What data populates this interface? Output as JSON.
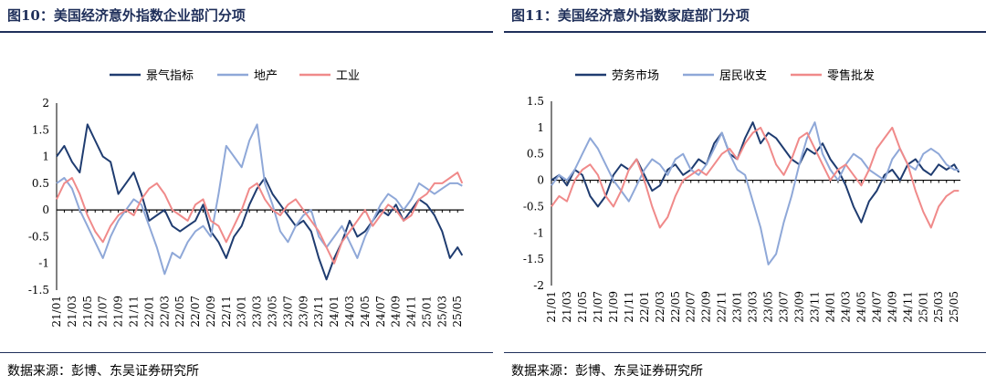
{
  "left": {
    "title": "图10：美国经济意外指数企业部门分项",
    "source": "数据来源：彭博、东吴证券研究所",
    "chart_data": {
      "type": "line",
      "ylim": [
        -1.5,
        2
      ],
      "yticks": [
        "2",
        "1.5",
        "1",
        "0.5",
        "0",
        "-0.5",
        "-1",
        "-1.5"
      ],
      "xticks": [
        "21/01",
        "21/03",
        "21/05",
        "21/07",
        "21/09",
        "21/11",
        "22/01",
        "22/03",
        "22/05",
        "22/07",
        "22/09",
        "22/11",
        "23/01",
        "23/03",
        "23/05",
        "23/07",
        "23/09",
        "23/11",
        "24/01",
        "24/03",
        "24/05",
        "24/07",
        "24/09",
        "24/11",
        "25/01",
        "25/03",
        "25/05"
      ],
      "legend_position": "top-center",
      "series": [
        {
          "name": "景气指标",
          "color": "#1f3c70",
          "x": [
            0,
            0.5,
            1,
            1.5,
            2,
            2.5,
            3,
            3.5,
            4,
            4.5,
            5,
            5.5,
            6,
            6.5,
            7,
            7.5,
            8,
            8.5,
            9,
            9.5,
            10,
            10.5,
            11,
            11.5,
            12,
            12.5,
            13,
            13.5,
            14,
            14.5,
            15,
            15.5,
            16,
            16.5,
            17,
            17.5,
            18,
            18.5,
            19,
            19.5,
            20,
            20.5,
            21,
            21.5,
            22,
            22.5,
            23,
            23.5,
            24,
            24.5,
            25,
            25.5,
            26,
            26.3
          ],
          "values": [
            1.0,
            1.2,
            0.9,
            0.7,
            1.6,
            1.3,
            1.0,
            0.9,
            0.3,
            0.5,
            0.7,
            0.3,
            -0.2,
            -0.1,
            0.0,
            -0.3,
            -0.4,
            -0.3,
            -0.2,
            0.1,
            -0.4,
            -0.6,
            -0.9,
            -0.5,
            -0.3,
            0.1,
            0.4,
            0.6,
            0.3,
            0.1,
            -0.1,
            -0.3,
            -0.2,
            -0.4,
            -0.9,
            -1.3,
            -0.9,
            -0.6,
            -0.2,
            -0.5,
            -0.4,
            -0.2,
            0.0,
            -0.1,
            0.1,
            -0.2,
            0.0,
            0.2,
            0.1,
            -0.1,
            -0.4,
            -0.9,
            -0.7,
            -0.85
          ]
        },
        {
          "name": "地产",
          "color": "#8fa8d8",
          "x": [
            0,
            0.5,
            1,
            1.5,
            2,
            2.5,
            3,
            3.5,
            4,
            4.5,
            5,
            5.5,
            6,
            6.5,
            7,
            7.5,
            8,
            8.5,
            9,
            9.5,
            10,
            10.5,
            11,
            11.5,
            12,
            12.5,
            13,
            13.5,
            14,
            14.5,
            15,
            15.5,
            16,
            16.5,
            17,
            17.5,
            18,
            18.5,
            19,
            19.5,
            20,
            20.5,
            21,
            21.5,
            22,
            22.5,
            23,
            23.5,
            24,
            24.5,
            25,
            25.5,
            26,
            26.3
          ],
          "values": [
            0.5,
            0.6,
            0.4,
            0.0,
            -0.3,
            -0.6,
            -0.9,
            -0.5,
            -0.2,
            0.0,
            0.2,
            0.1,
            -0.3,
            -0.7,
            -1.2,
            -0.8,
            -0.9,
            -0.6,
            -0.4,
            -0.3,
            -0.5,
            0.3,
            1.2,
            1.0,
            0.8,
            1.3,
            1.6,
            0.5,
            0.1,
            -0.4,
            -0.6,
            -0.3,
            -0.1,
            0.0,
            -0.5,
            -0.7,
            -0.5,
            -0.3,
            -0.6,
            -0.9,
            -0.5,
            -0.2,
            0.1,
            0.3,
            0.2,
            0.0,
            0.2,
            0.5,
            0.4,
            0.3,
            0.4,
            0.5,
            0.5,
            0.45
          ]
        },
        {
          "name": "工业",
          "color": "#f08a8a",
          "x": [
            0,
            0.5,
            1,
            1.5,
            2,
            2.5,
            3,
            3.5,
            4,
            4.5,
            5,
            5.5,
            6,
            6.5,
            7,
            7.5,
            8,
            8.5,
            9,
            9.5,
            10,
            10.5,
            11,
            11.5,
            12,
            12.5,
            13,
            13.5,
            14,
            14.5,
            15,
            15.5,
            16,
            16.5,
            17,
            17.5,
            18,
            18.5,
            19,
            19.5,
            20,
            20.5,
            21,
            21.5,
            22,
            22.5,
            23,
            23.5,
            24,
            24.5,
            25,
            25.5,
            26,
            26.3
          ],
          "values": [
            0.2,
            0.5,
            0.6,
            0.3,
            -0.1,
            -0.4,
            -0.6,
            -0.3,
            -0.1,
            0.0,
            -0.1,
            0.2,
            0.4,
            0.5,
            0.3,
            0.0,
            -0.1,
            -0.2,
            0.1,
            0.2,
            -0.2,
            -0.3,
            -0.6,
            -0.3,
            0.0,
            0.4,
            0.5,
            0.2,
            0.0,
            -0.1,
            0.1,
            0.2,
            0.0,
            -0.2,
            -0.4,
            -0.7,
            -1.0,
            -0.6,
            -0.4,
            -0.2,
            0.0,
            -0.3,
            -0.1,
            0.1,
            0.0,
            -0.2,
            -0.1,
            0.2,
            0.3,
            0.5,
            0.5,
            0.6,
            0.7,
            0.5
          ]
        }
      ]
    }
  },
  "right": {
    "title": "图11：美国经济意外指数家庭部门分项",
    "source": "数据来源：彭博、东吴证券研究所",
    "chart_data": {
      "type": "line",
      "ylim": [
        -2,
        1.5
      ],
      "yticks": [
        "1.5",
        "1",
        "0.5",
        "0",
        "-0.5",
        "-1",
        "-1.5",
        "-2"
      ],
      "xticks": [
        "21/01",
        "21/03",
        "21/05",
        "21/07",
        "21/09",
        "21/11",
        "22/01",
        "22/03",
        "22/05",
        "22/07",
        "22/09",
        "22/11",
        "23/01",
        "23/03",
        "23/05",
        "23/07",
        "23/09",
        "23/11",
        "24/01",
        "24/03",
        "24/05",
        "24/07",
        "24/09",
        "24/11",
        "25/01",
        "25/03",
        "25/05"
      ],
      "legend_position": "top-center",
      "series": [
        {
          "name": "劳务市场",
          "color": "#1f3c70",
          "x": [
            0,
            0.5,
            1,
            1.5,
            2,
            2.5,
            3,
            3.5,
            4,
            4.5,
            5,
            5.5,
            6,
            6.5,
            7,
            7.5,
            8,
            8.5,
            9,
            9.5,
            10,
            10.5,
            11,
            11.5,
            12,
            12.5,
            13,
            13.5,
            14,
            14.5,
            15,
            15.5,
            16,
            16.5,
            17,
            17.5,
            18,
            18.5,
            19,
            19.5,
            20,
            20.5,
            21,
            21.5,
            22,
            22.5,
            23,
            23.5,
            24,
            24.5,
            25,
            25.5,
            26,
            26.3
          ],
          "values": [
            0.0,
            0.1,
            -0.1,
            0.2,
            0.1,
            -0.3,
            -0.5,
            -0.3,
            0.1,
            0.3,
            0.2,
            0.4,
            0.1,
            -0.2,
            -0.1,
            0.2,
            0.3,
            0.1,
            0.2,
            0.4,
            0.3,
            0.7,
            0.9,
            0.5,
            0.4,
            0.8,
            1.1,
            0.7,
            0.9,
            0.8,
            0.6,
            0.4,
            0.3,
            0.6,
            0.5,
            0.7,
            0.4,
            0.2,
            -0.1,
            -0.5,
            -0.8,
            -0.4,
            -0.2,
            0.1,
            0.2,
            0.0,
            0.3,
            0.4,
            0.2,
            0.1,
            0.3,
            0.2,
            0.3,
            0.15
          ]
        },
        {
          "name": "居民收支",
          "color": "#8fa8d8",
          "x": [
            0,
            0.5,
            1,
            1.5,
            2,
            2.5,
            3,
            3.5,
            4,
            4.5,
            5,
            5.5,
            6,
            6.5,
            7,
            7.5,
            8,
            8.5,
            9,
            9.5,
            10,
            10.5,
            11,
            11.5,
            12,
            12.5,
            13,
            13.5,
            14,
            14.5,
            15,
            15.5,
            16,
            16.5,
            17,
            17.5,
            18,
            18.5,
            19,
            19.5,
            20,
            20.5,
            21,
            21.5,
            22,
            22.5,
            23,
            23.5,
            24,
            24.5,
            25,
            25.5,
            26,
            26.3
          ],
          "values": [
            -0.1,
            0.1,
            0.0,
            0.2,
            0.5,
            0.8,
            0.6,
            0.3,
            0.0,
            -0.2,
            -0.4,
            -0.1,
            0.2,
            0.4,
            0.3,
            0.1,
            0.4,
            0.5,
            0.2,
            0.1,
            0.3,
            0.6,
            0.9,
            0.5,
            0.2,
            0.1,
            -0.4,
            -0.9,
            -1.6,
            -1.4,
            -0.8,
            -0.3,
            0.3,
            0.8,
            1.1,
            0.5,
            0.2,
            0.0,
            0.3,
            0.5,
            0.4,
            0.2,
            0.1,
            0.0,
            0.4,
            0.6,
            0.3,
            0.2,
            0.5,
            0.6,
            0.5,
            0.3,
            0.2,
            0.2
          ]
        },
        {
          "name": "零售批发",
          "color": "#f08a8a",
          "x": [
            0,
            0.5,
            1,
            1.5,
            2,
            2.5,
            3,
            3.5,
            4,
            4.5,
            5,
            5.5,
            6,
            6.5,
            7,
            7.5,
            8,
            8.5,
            9,
            9.5,
            10,
            10.5,
            11,
            11.5,
            12,
            12.5,
            13,
            13.5,
            14,
            14.5,
            15,
            15.5,
            16,
            16.5,
            17,
            17.5,
            18,
            18.5,
            19,
            19.5,
            20,
            20.5,
            21,
            21.5,
            22,
            22.5,
            23,
            23.5,
            24,
            24.5,
            25,
            25.5,
            26,
            26.3
          ],
          "values": [
            -0.5,
            -0.3,
            -0.4,
            0.0,
            0.2,
            0.3,
            0.1,
            -0.3,
            -0.5,
            -0.2,
            0.2,
            0.4,
            0.0,
            -0.5,
            -0.9,
            -0.7,
            -0.3,
            0.0,
            0.1,
            0.2,
            0.1,
            0.3,
            0.5,
            0.6,
            0.4,
            0.7,
            0.9,
            1.0,
            0.7,
            0.3,
            0.1,
            0.4,
            0.8,
            0.9,
            0.6,
            0.3,
            0.0,
            0.2,
            0.3,
            0.1,
            -0.1,
            0.2,
            0.6,
            0.8,
            1.0,
            0.6,
            0.3,
            -0.2,
            -0.6,
            -0.9,
            -0.5,
            -0.3,
            -0.2,
            -0.2
          ]
        }
      ]
    }
  }
}
